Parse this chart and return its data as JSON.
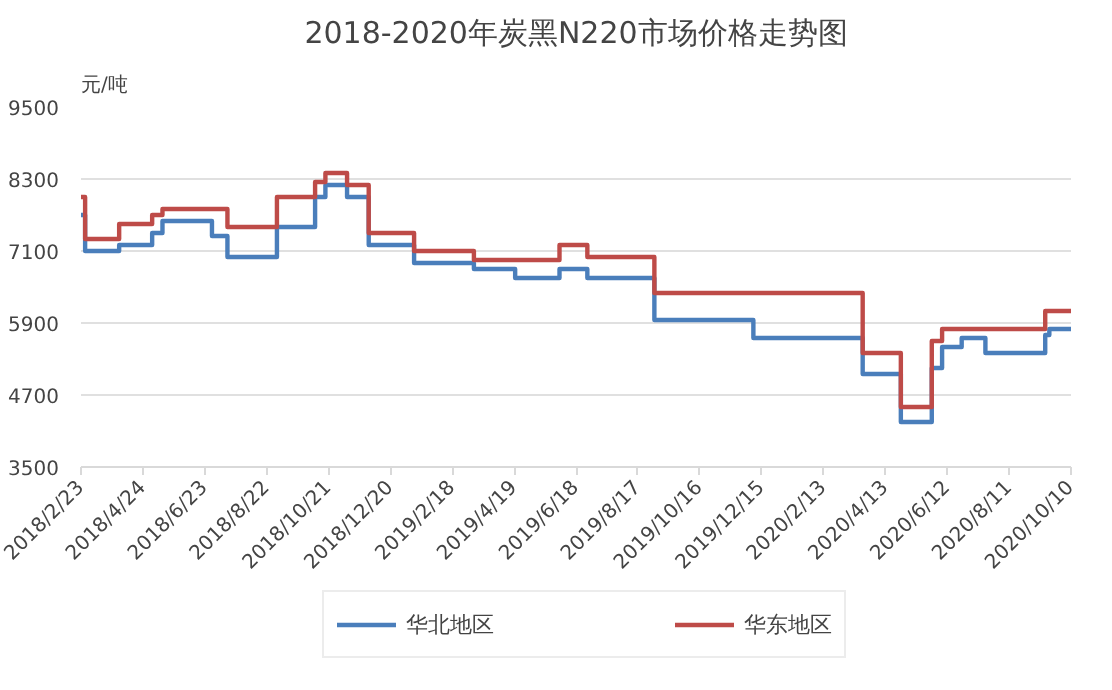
{
  "chart_data": {
    "type": "step",
    "title": "2018-2020年炭黑N220市场价格走势图",
    "ylabel": "元/吨",
    "x": [
      "2018-02-23",
      "2018-02-27",
      "2018-04-01",
      "2018-05-03",
      "2018-05-13",
      "2018-06-30",
      "2018-07-15",
      "2018-09-01",
      "2018-10-08",
      "2018-10-18",
      "2018-11-08",
      "2018-11-29",
      "2019-01-12",
      "2019-03-11",
      "2019-04-20",
      "2019-06-02",
      "2019-06-29",
      "2019-09-02",
      "2019-12-07",
      "2020-03-22",
      "2020-03-30",
      "2020-04-28",
      "2020-05-28",
      "2020-06-07",
      "2020-06-26",
      "2020-07-19",
      "2020-09-15",
      "2020-09-19",
      "2020-10-10"
    ],
    "series": [
      {
        "name": "华北地区",
        "color": "#4a7ebb",
        "values": [
          7700,
          7100,
          7200,
          7400,
          7600,
          7350,
          7000,
          7500,
          8000,
          8200,
          8000,
          7200,
          6900,
          6800,
          6650,
          6800,
          6650,
          5950,
          5650,
          5050,
          5050,
          4250,
          5150,
          5500,
          5650,
          5400,
          5700,
          5800,
          5800
        ]
      },
      {
        "name": "华东地区",
        "color": "#be4b48",
        "values": [
          8000,
          7300,
          7550,
          7700,
          7800,
          7800,
          7500,
          8000,
          8250,
          8400,
          8200,
          7400,
          7100,
          6950,
          6950,
          7200,
          7000,
          6400,
          6400,
          5400,
          5400,
          4500,
          5600,
          5800,
          5800,
          5800,
          6100,
          6100,
          6100
        ]
      }
    ],
    "xlim": [
      "2018-02-23",
      "2020-10-10"
    ],
    "xticks": [
      {
        "value": "2018-02-23",
        "label": "2018/2/23"
      },
      {
        "value": "2018-04-24",
        "label": "2018/4/24"
      },
      {
        "value": "2018-06-23",
        "label": "2018/6/23"
      },
      {
        "value": "2018-08-22",
        "label": "2018/8/22"
      },
      {
        "value": "2018-10-21",
        "label": "2018/10/21"
      },
      {
        "value": "2018-12-20",
        "label": "2018/12/20"
      },
      {
        "value": "2019-02-18",
        "label": "2019/2/18"
      },
      {
        "value": "2019-04-19",
        "label": "2019/4/19"
      },
      {
        "value": "2019-06-18",
        "label": "2019/6/18"
      },
      {
        "value": "2019-08-17",
        "label": "2019/8/17"
      },
      {
        "value": "2019-10-16",
        "label": "2019/10/16"
      },
      {
        "value": "2019-12-15",
        "label": "2019/12/15"
      },
      {
        "value": "2020-02-13",
        "label": "2020/2/13"
      },
      {
        "value": "2020-04-13",
        "label": "2020/4/13"
      },
      {
        "value": "2020-06-12",
        "label": "2020/6/12"
      },
      {
        "value": "2020-08-11",
        "label": "2020/8/11"
      },
      {
        "value": "2020-10-10",
        "label": "2020/10/10"
      }
    ],
    "ylim": [
      3500,
      9500
    ],
    "yticks": [
      3500,
      4700,
      5900,
      7100,
      8300,
      9500
    ],
    "grid": "y",
    "legend": "bottom"
  }
}
